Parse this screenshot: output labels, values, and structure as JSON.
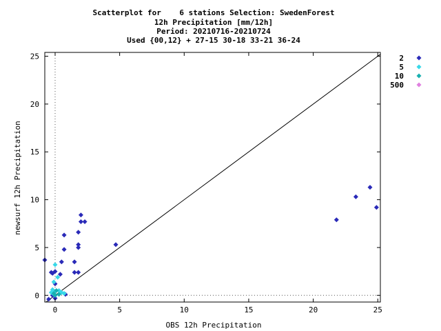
{
  "chart_data": {
    "type": "scatter",
    "title_lines": [
      "Scatterplot for    6 stations Selection: SwedenForest",
      "12h Precipitation [mm/12h]",
      "Period: 20210716-20210724",
      "Used {00,12} + 27-15 30-18 33-21 36-24"
    ],
    "xlabel": "OBS 12h Precipitation",
    "ylabel": "newsurf 12h Precipitation",
    "xlim": [
      -0.8,
      25.2
    ],
    "ylim": [
      -0.7,
      25.4
    ],
    "x_ticks": [
      0,
      5,
      10,
      15,
      20,
      25
    ],
    "y_ticks": [
      0,
      5,
      10,
      15,
      20,
      25
    ],
    "x_tick_labels": [
      "0",
      "5",
      "10",
      "15",
      "20",
      "25"
    ],
    "y_tick_labels": [
      "0",
      "5",
      "10",
      "15",
      "20",
      "25"
    ],
    "grid": "dotted",
    "diagonal": true,
    "legend_position": "right",
    "series": [
      {
        "name": "2",
        "color": "#2a2ab8",
        "points": [
          [
            -0.8,
            3.7
          ],
          [
            -0.3,
            2.4
          ],
          [
            -0.2,
            2.3
          ],
          [
            0.0,
            2.5
          ],
          [
            0.0,
            1.2
          ],
          [
            0.4,
            2.2
          ],
          [
            0.5,
            3.5
          ],
          [
            0.7,
            6.3
          ],
          [
            0.7,
            4.8
          ],
          [
            0.8,
            0.1
          ],
          [
            1.5,
            3.5
          ],
          [
            1.5,
            2.4
          ],
          [
            1.8,
            2.4
          ],
          [
            1.8,
            5.3
          ],
          [
            1.8,
            5.0
          ],
          [
            1.8,
            6.6
          ],
          [
            2.0,
            8.4
          ],
          [
            2.0,
            7.7
          ],
          [
            2.3,
            7.7
          ],
          [
            4.7,
            5.3
          ],
          [
            21.8,
            7.9
          ],
          [
            23.3,
            10.3
          ],
          [
            24.4,
            11.3
          ],
          [
            24.9,
            9.2
          ],
          [
            -0.2,
            0.0
          ],
          [
            0.0,
            -0.3
          ],
          [
            -0.5,
            -0.4
          ]
        ]
      },
      {
        "name": "5",
        "color": "#38d8e8",
        "points": [
          [
            -0.2,
            0.6
          ],
          [
            -0.1,
            1.4
          ],
          [
            0.0,
            3.2
          ],
          [
            0.2,
            1.9
          ],
          [
            0.3,
            0.5
          ],
          [
            0.5,
            0.3
          ],
          [
            0.7,
            0.2
          ],
          [
            -0.3,
            0.3
          ],
          [
            0.0,
            0.4
          ],
          [
            -0.1,
            0.1
          ]
        ]
      },
      {
        "name": "10",
        "color": "#18b0b0",
        "points": [
          [
            -0.1,
            0.2
          ],
          [
            0.1,
            0.5
          ],
          [
            0.3,
            0.1
          ],
          [
            0.0,
            0.0
          ]
        ]
      },
      {
        "name": "500",
        "color": "#e080e0",
        "points": []
      }
    ]
  }
}
